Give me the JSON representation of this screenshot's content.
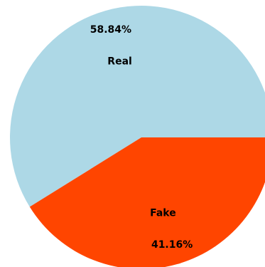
{
  "chart_data": {
    "type": "pie",
    "slices": [
      {
        "label": "Real",
        "value": 58.84,
        "pct_label": "58.84%",
        "color": "#add8e6"
      },
      {
        "label": "Fake",
        "value": 41.16,
        "pct_label": "41.16%",
        "color": "#ff4500"
      }
    ],
    "start_angle_deg": 0,
    "direction": "counterclockwise",
    "legend": "none"
  }
}
